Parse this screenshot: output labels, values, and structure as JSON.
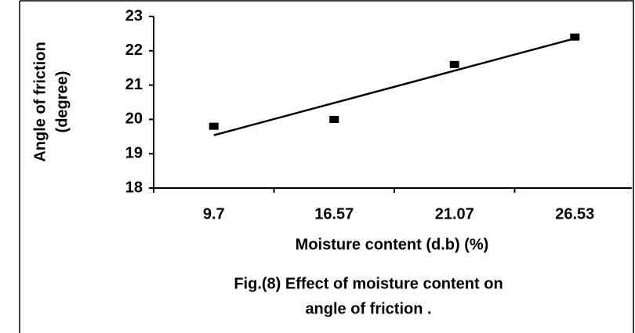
{
  "chart_data": {
    "type": "scatter",
    "title": [
      "Fig.(8) Effect of moisture content on",
      "angle of friction ."
    ],
    "xlabel": "Moisture content (d.b) (%)",
    "ylabel": [
      "Angle of friction",
      "(degree)"
    ],
    "categories": [
      "9.7",
      "16.57",
      "21.07",
      "26.53"
    ],
    "values": [
      19.8,
      20.0,
      21.6,
      22.4
    ],
    "color": "#000000",
    "trendline": "linear",
    "ylim": [
      18,
      23
    ],
    "yticks": [
      18,
      19,
      20,
      21,
      22,
      23
    ],
    "grid": false
  }
}
